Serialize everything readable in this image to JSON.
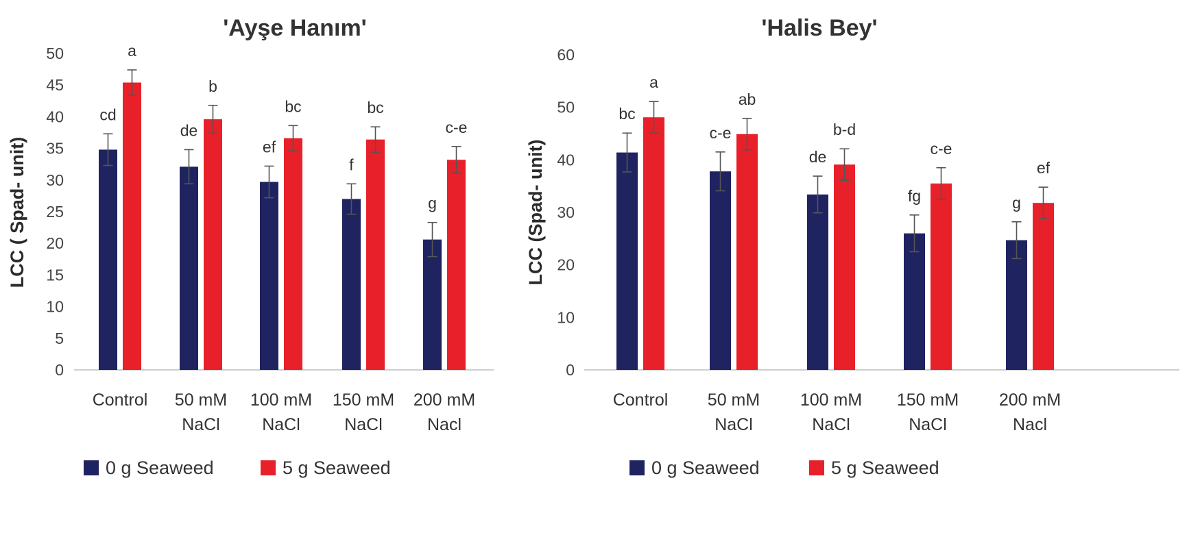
{
  "colors": {
    "seaweed0": "#1f2360",
    "seaweed5": "#e8202a"
  },
  "legend": {
    "series0": "0 g Seaweed",
    "series1": "5 g Seaweed"
  },
  "chart_data": [
    {
      "type": "bar",
      "title": "'Ayşe Hanım'",
      "ylabel": "LCC ( Spad- unit)",
      "xlabel": "",
      "ylim": [
        0,
        50
      ],
      "yticks": [
        0,
        5,
        10,
        15,
        20,
        25,
        30,
        35,
        40,
        45,
        50
      ],
      "categories": [
        [
          "Control"
        ],
        [
          "50 mM",
          "NaCl"
        ],
        [
          "100 mM",
          "NaCl"
        ],
        [
          "150 mM",
          "NaCl"
        ],
        [
          "200 mM",
          "Nacl"
        ]
      ],
      "series": [
        {
          "name": "0 g Seaweed",
          "values": [
            34.8,
            32.1,
            29.7,
            27.0,
            20.6
          ],
          "errors": [
            2.5,
            2.7,
            2.5,
            2.4,
            2.7
          ],
          "letters": [
            "cd",
            "de",
            "ef",
            "f",
            "g"
          ]
        },
        {
          "name": "5 g Seaweed",
          "values": [
            45.4,
            39.6,
            36.6,
            36.4,
            33.2
          ],
          "errors": [
            2.0,
            2.2,
            2.0,
            2.0,
            2.1
          ],
          "letters": [
            "a",
            "b",
            "bc",
            "bc",
            "c-e"
          ]
        }
      ]
    },
    {
      "type": "bar",
      "title": "'Halis Bey'",
      "ylabel": "LCC (Spad- unit)",
      "xlabel": "",
      "ylim": [
        0,
        60
      ],
      "yticks": [
        0,
        10,
        20,
        30,
        40,
        50,
        60
      ],
      "categories": [
        [
          "Control"
        ],
        [
          "50 mM",
          "NaCl"
        ],
        [
          "100 mM",
          "NaCl"
        ],
        [
          "150 mM",
          "NaCl"
        ],
        [
          "200 mM",
          "Nacl"
        ]
      ],
      "series": [
        {
          "name": "0 g Seaweed",
          "values": [
            41.4,
            37.8,
            33.4,
            26.0,
            24.7
          ],
          "errors": [
            3.7,
            3.7,
            3.5,
            3.5,
            3.5
          ],
          "letters": [
            "bc",
            "c-e",
            "de",
            "fg",
            "g"
          ]
        },
        {
          "name": "5 g Seaweed",
          "values": [
            48.1,
            44.9,
            39.1,
            35.5,
            31.8
          ],
          "errors": [
            3.0,
            3.0,
            3.0,
            3.0,
            3.0
          ],
          "letters": [
            "a",
            "ab",
            "b-d",
            "c-e",
            "ef"
          ]
        }
      ]
    }
  ]
}
